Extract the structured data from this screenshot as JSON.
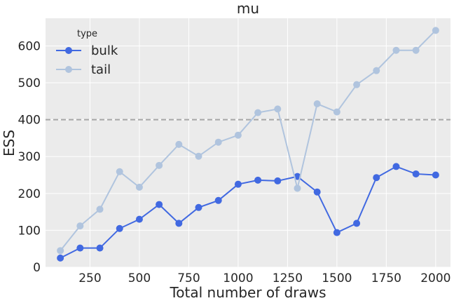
{
  "chart_data": {
    "type": "line",
    "title": "mu",
    "xlabel": "Total number of draws",
    "ylabel": "ESS",
    "xlim": [
      25,
      2075
    ],
    "ylim": [
      0,
      675
    ],
    "xticks": [
      250,
      500,
      750,
      1000,
      1250,
      1500,
      1750,
      2000
    ],
    "yticks": [
      0,
      100,
      200,
      300,
      400,
      500,
      600
    ],
    "xtick_labels": [
      "250",
      "500",
      "750",
      "1000",
      "1250",
      "1500",
      "1750",
      "2000"
    ],
    "ytick_labels": [
      "0",
      "100",
      "200",
      "300",
      "400",
      "500",
      "600"
    ],
    "grid": true,
    "background": "#ebebeb",
    "reference_line": {
      "y": 400,
      "color": "#a6a6a6",
      "style": "dashed"
    },
    "legend": {
      "title": "type",
      "position": "top-left"
    },
    "x": [
      100,
      200,
      300,
      400,
      500,
      600,
      700,
      800,
      900,
      1000,
      1100,
      1200,
      1300,
      1400,
      1500,
      1600,
      1700,
      1800,
      1900,
      2000
    ],
    "series": [
      {
        "name": "bulk",
        "color": "#4169e1",
        "values": [
          25,
          52,
          52,
          105,
          130,
          170,
          119,
          162,
          181,
          225,
          236,
          234,
          246,
          204,
          94,
          119,
          243,
          273,
          253,
          250
        ]
      },
      {
        "name": "tail",
        "color": "#b0c4de",
        "values": [
          45,
          112,
          157,
          259,
          217,
          276,
          333,
          301,
          339,
          358,
          419,
          429,
          214,
          443,
          421,
          495,
          533,
          588,
          588,
          642
        ]
      }
    ]
  }
}
